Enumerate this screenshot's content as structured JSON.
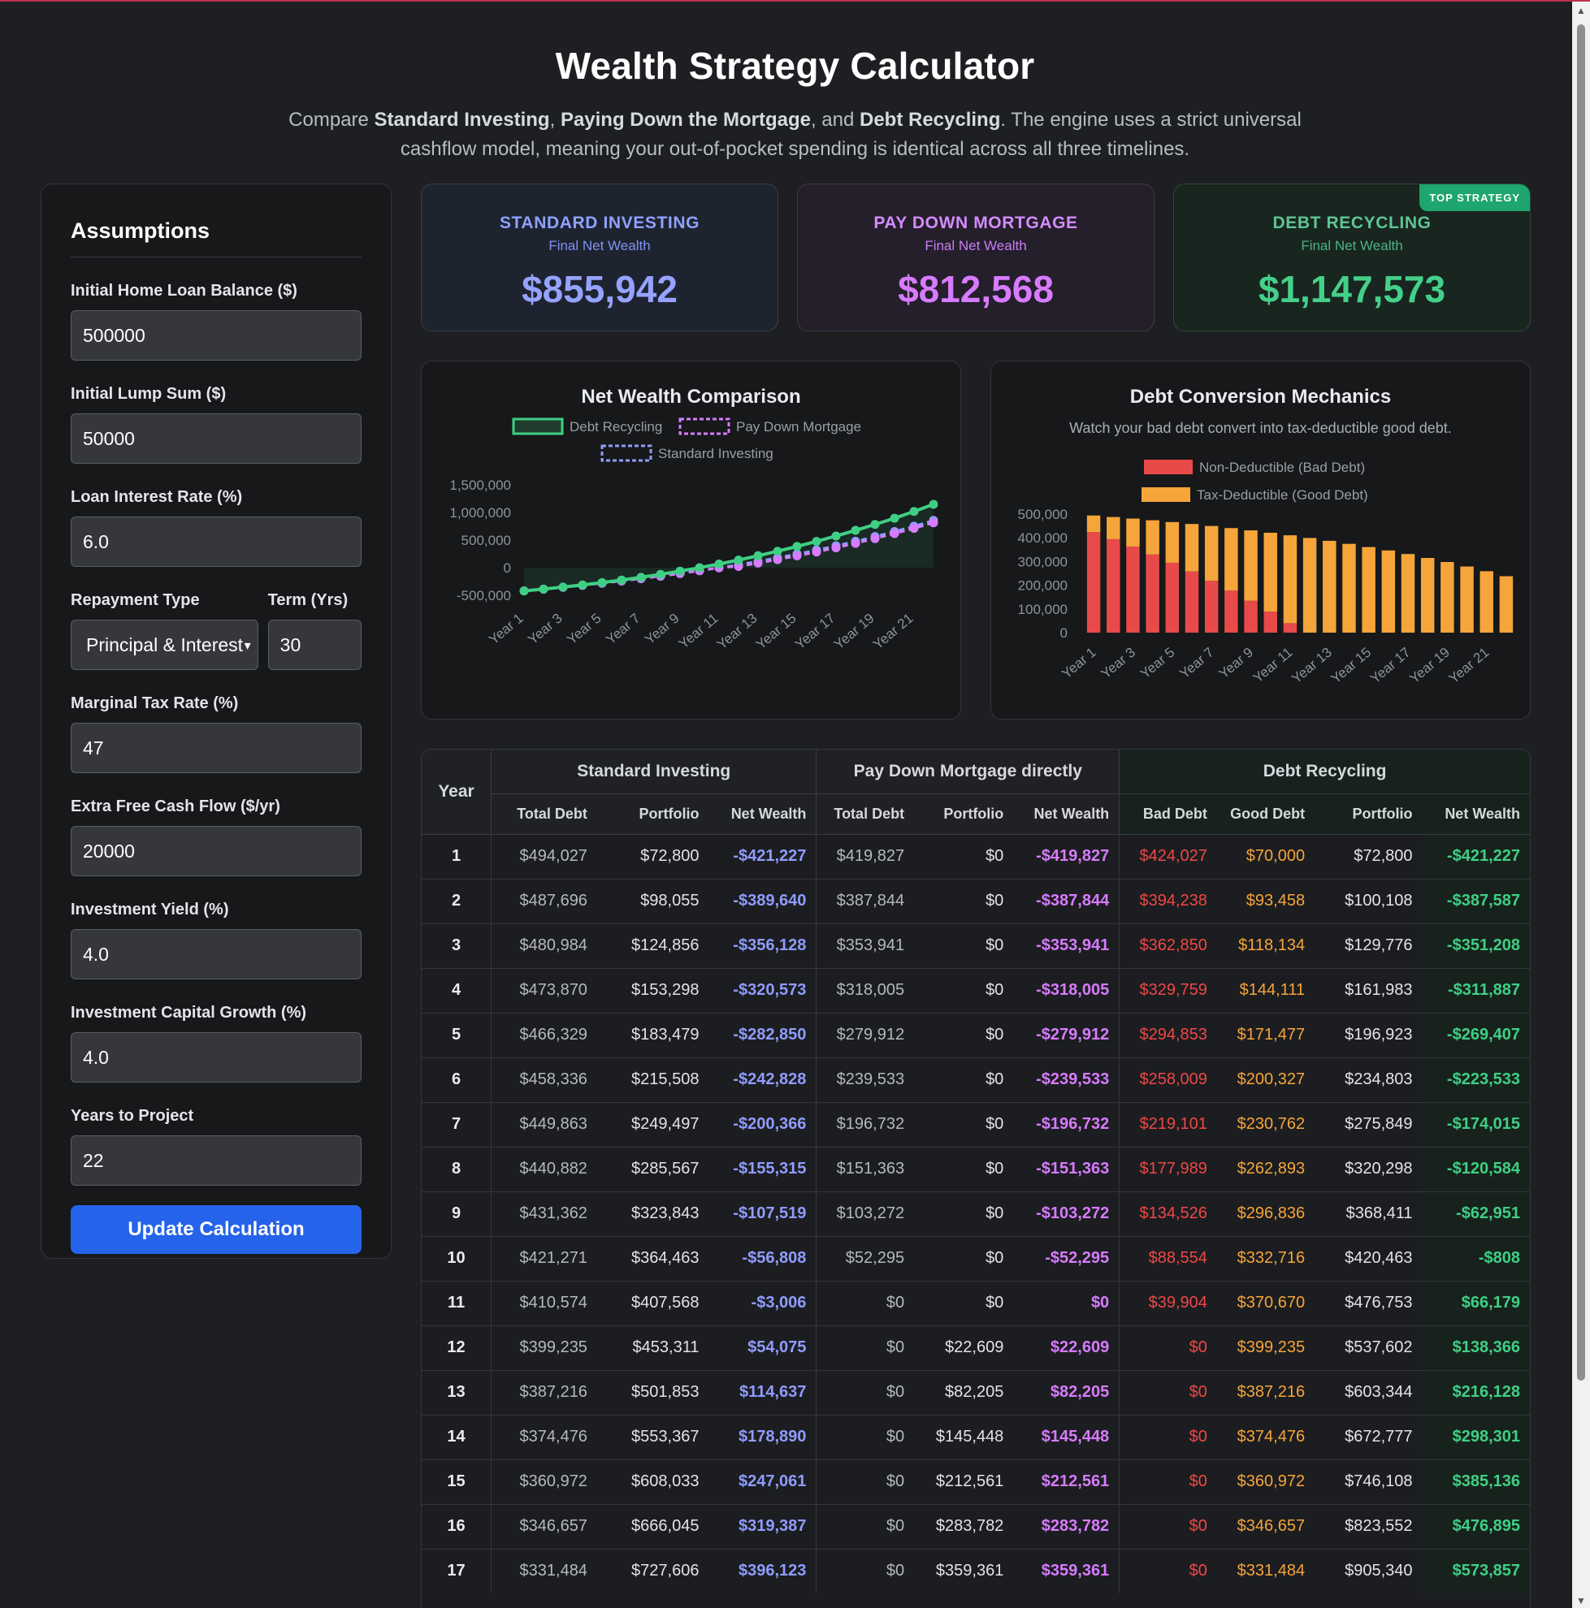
{
  "header": {
    "title": "Wealth Strategy Calculator",
    "desc_1": "Compare ",
    "desc_b1": "Standard Investing",
    "desc_2": ", ",
    "desc_b2": "Paying Down the Mortgage",
    "desc_3": ", and ",
    "desc_b3": "Debt Recycling",
    "desc_4": ". The engine uses a strict universal cashflow model, meaning your out-of-pocket spending is identical across all three timelines."
  },
  "sidebar": {
    "title": "Assumptions",
    "loan_label": "Initial Home Loan Balance ($)",
    "loan_value": "500000",
    "lump_label": "Initial Lump Sum ($)",
    "lump_value": "50000",
    "rate_label": "Loan Interest Rate (%)",
    "rate_value": "6.0",
    "repay_label": "Repayment Type",
    "repay_value": "Principal & Interest",
    "term_label": "Term (Yrs)",
    "term_value": "30",
    "tax_label": "Marginal Tax Rate (%)",
    "tax_value": "47",
    "cash_label": "Extra Free Cash Flow ($/yr)",
    "cash_value": "20000",
    "yield_label": "Investment Yield (%)",
    "yield_value": "4.0",
    "growth_label": "Investment Capital Growth (%)",
    "growth_value": "4.0",
    "years_label": "Years to Project",
    "years_value": "22",
    "button": "Update Calculation"
  },
  "cards": [
    {
      "title": "STANDARD INVESTING",
      "sub": "Final Net Wealth",
      "value": "$855,942"
    },
    {
      "title": "PAY DOWN MORTGAGE",
      "sub": "Final Net Wealth",
      "value": "$812,568"
    },
    {
      "title": "DEBT RECYCLING",
      "sub": "Final Net Wealth",
      "value": "$1,147,573",
      "badge": "TOP STRATEGY"
    }
  ],
  "colors": {
    "standard": "#8f9cff",
    "paydown": "#d77bff",
    "recycling": "#3fcf84",
    "bad_debt": "#e84a4a",
    "good_debt": "#f5a53a",
    "accent_button": "#2563eb"
  },
  "chart_data": [
    {
      "type": "line",
      "title": "Net Wealth Comparison",
      "x": [
        "Year 1",
        "Year 2",
        "Year 3",
        "Year 4",
        "Year 5",
        "Year 6",
        "Year 7",
        "Year 8",
        "Year 9",
        "Year 10",
        "Year 11",
        "Year 12",
        "Year 13",
        "Year 14",
        "Year 15",
        "Year 16",
        "Year 17",
        "Year 18",
        "Year 19",
        "Year 20",
        "Year 21",
        "Year 22"
      ],
      "x_tick_labels": [
        "Year 1",
        "Year 3",
        "Year 5",
        "Year 7",
        "Year 9",
        "Year 11",
        "Year 13",
        "Year 15",
        "Year 17",
        "Year 19",
        "Year 21"
      ],
      "y_tick_labels": [
        "1,500,000",
        "1,000,000",
        "500,000",
        "0",
        "-500,000"
      ],
      "ylim": [
        -500000,
        1500000
      ],
      "legend_position": "top",
      "series": [
        {
          "name": "Debt Recycling",
          "values": [
            -421227,
            -387587,
            -351208,
            -311887,
            -269407,
            -223533,
            -174015,
            -120584,
            -62951,
            -808,
            66179,
            138366,
            216128,
            298301,
            385136,
            476895,
            573857,
            676000,
            783000,
            895000,
            1018000,
            1147573
          ]
        },
        {
          "name": "Pay Down Mortgage",
          "values": [
            -419827,
            -387844,
            -353941,
            -318005,
            -279912,
            -239533,
            -196732,
            -151363,
            -103272,
            -52295,
            0,
            22609,
            82205,
            145448,
            212561,
            283782,
            359361,
            440000,
            526000,
            617000,
            712000,
            812568
          ]
        },
        {
          "name": "Standard Investing",
          "values": [
            -421227,
            -389640,
            -356128,
            -320573,
            -282850,
            -242828,
            -200366,
            -155315,
            -107519,
            -56808,
            -3006,
            54075,
            114637,
            178890,
            247061,
            319387,
            396123,
            478000,
            564000,
            655000,
            752000,
            855942
          ]
        }
      ]
    },
    {
      "type": "bar",
      "stacked": true,
      "title": "Debt Conversion Mechanics",
      "subtitle": "Watch your bad debt convert into tax-deductible good debt.",
      "categories": [
        "Year 1",
        "Year 2",
        "Year 3",
        "Year 4",
        "Year 5",
        "Year 6",
        "Year 7",
        "Year 8",
        "Year 9",
        "Year 10",
        "Year 11",
        "Year 12",
        "Year 13",
        "Year 14",
        "Year 15",
        "Year 16",
        "Year 17",
        "Year 18",
        "Year 19",
        "Year 20",
        "Year 21",
        "Year 22"
      ],
      "x_tick_labels": [
        "Year 1",
        "Year 3",
        "Year 5",
        "Year 7",
        "Year 9",
        "Year 11",
        "Year 13",
        "Year 15",
        "Year 17",
        "Year 19",
        "Year 21"
      ],
      "y_tick_labels": [
        "500,000",
        "400,000",
        "300,000",
        "200,000",
        "100,000",
        "0"
      ],
      "ylim": [
        0,
        500000
      ],
      "legend_position": "top",
      "series": [
        {
          "name": "Non-Deductible (Bad Debt)",
          "values": [
            424027,
            394238,
            362850,
            329759,
            294853,
            258009,
            219101,
            177989,
            134526,
            88554,
            39904,
            0,
            0,
            0,
            0,
            0,
            0,
            0,
            0,
            0,
            0,
            0
          ]
        },
        {
          "name": "Tax-Deductible (Good Debt)",
          "values": [
            70000,
            93458,
            118134,
            144111,
            171477,
            200327,
            230762,
            262893,
            296836,
            332716,
            370670,
            399235,
            387216,
            374476,
            360972,
            346657,
            331484,
            315000,
            298000,
            279000,
            259000,
            238000
          ]
        }
      ]
    }
  ],
  "table": {
    "year_header": "Year",
    "groups": [
      "Standard Investing",
      "Pay Down Mortgage directly",
      "Debt Recycling"
    ],
    "subheaders": [
      "Total Debt",
      "Portfolio",
      "Net Wealth",
      "Total Debt",
      "Portfolio",
      "Net Wealth",
      "Bad Debt",
      "Good Debt",
      "Portfolio",
      "Net Wealth"
    ],
    "rows": [
      [
        "1",
        "$494,027",
        "$72,800",
        "-$421,227",
        "$419,827",
        "$0",
        "-$419,827",
        "$424,027",
        "$70,000",
        "$72,800",
        "-$421,227"
      ],
      [
        "2",
        "$487,696",
        "$98,055",
        "-$389,640",
        "$387,844",
        "$0",
        "-$387,844",
        "$394,238",
        "$93,458",
        "$100,108",
        "-$387,587"
      ],
      [
        "3",
        "$480,984",
        "$124,856",
        "-$356,128",
        "$353,941",
        "$0",
        "-$353,941",
        "$362,850",
        "$118,134",
        "$129,776",
        "-$351,208"
      ],
      [
        "4",
        "$473,870",
        "$153,298",
        "-$320,573",
        "$318,005",
        "$0",
        "-$318,005",
        "$329,759",
        "$144,111",
        "$161,983",
        "-$311,887"
      ],
      [
        "5",
        "$466,329",
        "$183,479",
        "-$282,850",
        "$279,912",
        "$0",
        "-$279,912",
        "$294,853",
        "$171,477",
        "$196,923",
        "-$269,407"
      ],
      [
        "6",
        "$458,336",
        "$215,508",
        "-$242,828",
        "$239,533",
        "$0",
        "-$239,533",
        "$258,009",
        "$200,327",
        "$234,803",
        "-$223,533"
      ],
      [
        "7",
        "$449,863",
        "$249,497",
        "-$200,366",
        "$196,732",
        "$0",
        "-$196,732",
        "$219,101",
        "$230,762",
        "$275,849",
        "-$174,015"
      ],
      [
        "8",
        "$440,882",
        "$285,567",
        "-$155,315",
        "$151,363",
        "$0",
        "-$151,363",
        "$177,989",
        "$262,893",
        "$320,298",
        "-$120,584"
      ],
      [
        "9",
        "$431,362",
        "$323,843",
        "-$107,519",
        "$103,272",
        "$0",
        "-$103,272",
        "$134,526",
        "$296,836",
        "$368,411",
        "-$62,951"
      ],
      [
        "10",
        "$421,271",
        "$364,463",
        "-$56,808",
        "$52,295",
        "$0",
        "-$52,295",
        "$88,554",
        "$332,716",
        "$420,463",
        "-$808"
      ],
      [
        "11",
        "$410,574",
        "$407,568",
        "-$3,006",
        "$0",
        "$0",
        "$0",
        "$39,904",
        "$370,670",
        "$476,753",
        "$66,179"
      ],
      [
        "12",
        "$399,235",
        "$453,311",
        "$54,075",
        "$0",
        "$22,609",
        "$22,609",
        "$0",
        "$399,235",
        "$537,602",
        "$138,366"
      ],
      [
        "13",
        "$387,216",
        "$501,853",
        "$114,637",
        "$0",
        "$82,205",
        "$82,205",
        "$0",
        "$387,216",
        "$603,344",
        "$216,128"
      ],
      [
        "14",
        "$374,476",
        "$553,367",
        "$178,890",
        "$0",
        "$145,448",
        "$145,448",
        "$0",
        "$374,476",
        "$672,777",
        "$298,301"
      ],
      [
        "15",
        "$360,972",
        "$608,033",
        "$247,061",
        "$0",
        "$212,561",
        "$212,561",
        "$0",
        "$360,972",
        "$746,108",
        "$385,136"
      ],
      [
        "16",
        "$346,657",
        "$666,045",
        "$319,387",
        "$0",
        "$283,782",
        "$283,782",
        "$0",
        "$346,657",
        "$823,552",
        "$476,895"
      ],
      [
        "17",
        "$331,484",
        "$727,606",
        "$396,123",
        "$0",
        "$359,361",
        "$359,361",
        "$0",
        "$331,484",
        "$905,340",
        "$573,857"
      ]
    ]
  }
}
